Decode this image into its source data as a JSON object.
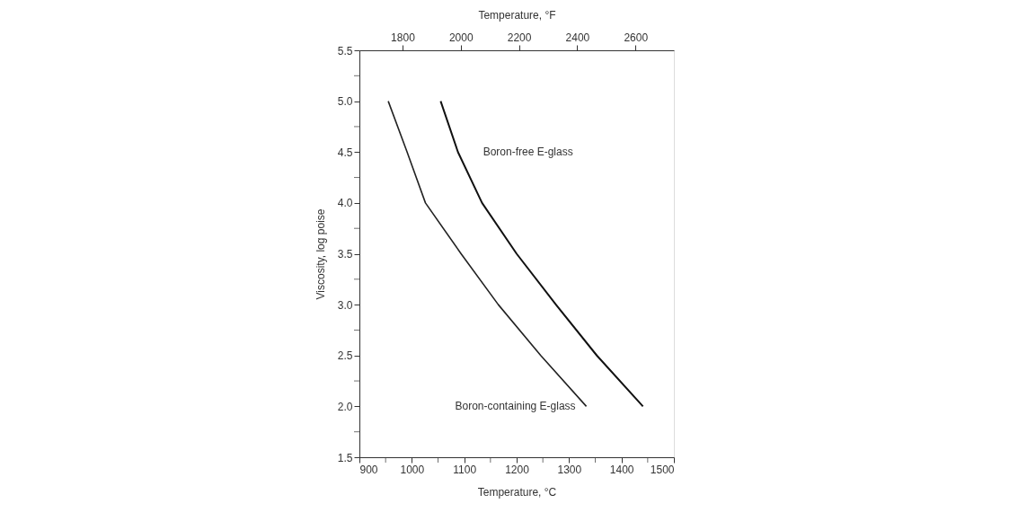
{
  "chart_data": {
    "type": "line",
    "xlabel": "Temperature, °C",
    "ylabel": "Viscosity, log poise",
    "x2label": "Temperature, °F",
    "xlim": [
      900,
      1500
    ],
    "xticks": [
      900,
      {
        "value": 950,
        "label": null
      },
      1000,
      {
        "value": 1050,
        "label": null
      },
      1100,
      {
        "value": 1150,
        "label": null
      },
      1200,
      {
        "value": 1250,
        "label": null
      },
      1300,
      {
        "value": 1350,
        "label": null
      },
      1400,
      {
        "value": 1450,
        "label": null
      },
      1500
    ],
    "x2lim": [
      1652,
      2732
    ],
    "x2ticks": [
      1800,
      2000,
      2200,
      2400,
      2600
    ],
    "ylim": [
      1.5,
      5.5
    ],
    "yticks": [
      1.5,
      {
        "value": 1.75,
        "label": null
      },
      {
        "value": 2,
        "label": "2.0"
      },
      {
        "value": 2.25,
        "label": null
      },
      2.5,
      {
        "value": 2.75,
        "label": null
      },
      {
        "value": 3,
        "label": "3.0"
      },
      {
        "value": 3.25,
        "label": null
      },
      3.5,
      {
        "value": 3.75,
        "label": null
      },
      {
        "value": 4,
        "label": "4.0"
      },
      {
        "value": 4.25,
        "label": null
      },
      4.5,
      {
        "value": 4.75,
        "label": null
      },
      {
        "value": 5,
        "label": "5.0"
      },
      {
        "value": 5.25,
        "label": null
      },
      5.5
    ],
    "grid": false,
    "marker": "none",
    "line_style": "solid",
    "series": [
      {
        "name": "Boron-containing E-glass",
        "color": "#222222",
        "x": [
          955,
          991,
          1026,
          1094,
          1165,
          1246,
          1333
        ],
        "values": [
          5.0,
          4.5,
          4.0,
          3.5,
          3.0,
          2.5,
          2.0
        ]
      },
      {
        "name": "Boron-free E-glass",
        "color": "#111111",
        "x": [
          1055,
          1088,
          1134,
          1200,
          1275,
          1353,
          1441
        ],
        "values": [
          5.0,
          4.5,
          4.0,
          3.5,
          3.0,
          2.5,
          2.0
        ]
      }
    ]
  }
}
